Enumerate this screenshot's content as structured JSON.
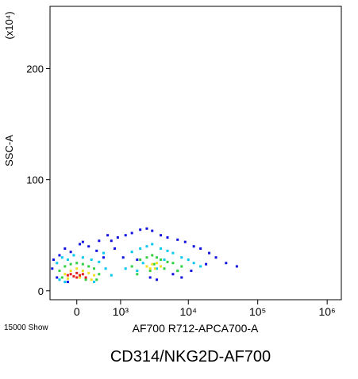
{
  "chart_data": {
    "type": "scatter",
    "title": "CD314/NKG2D-AF700",
    "x_label": "AF700 R712-APCA700-A",
    "y_label": "SSC-A",
    "y_unit_label": "(x10⁴)",
    "event_count_label": "15000 Show",
    "xscale": "arcsinh",
    "xlim": [
      -500,
      1600000
    ],
    "xticks": [
      0,
      {
        "value": 1000,
        "label": "10³"
      },
      {
        "value": 10000,
        "label": "10⁴"
      },
      {
        "value": 100000,
        "label": "10⁵"
      },
      {
        "value": 1000000,
        "label": "10⁶"
      }
    ],
    "ylim": [
      -8,
      256
    ],
    "yticks": [
      0,
      100,
      200
    ],
    "series": [
      {
        "color": "#1010e0",
        "x": [
          -450,
          -300,
          -200,
          -100,
          50,
          200,
          350,
          500,
          700,
          900,
          1200,
          1500,
          2000,
          2500,
          3000,
          4000,
          5000,
          7000,
          9000,
          12000,
          15000,
          20000,
          25000,
          35000,
          50000,
          -350,
          -150,
          100,
          400,
          800,
          1100,
          1800,
          2800,
          3500,
          6000,
          8000,
          11000,
          18000,
          -420,
          600
        ],
        "values": [
          20,
          32,
          38,
          35,
          42,
          40,
          36,
          30,
          45,
          48,
          50,
          52,
          55,
          56,
          54,
          50,
          48,
          46,
          44,
          40,
          38,
          34,
          30,
          25,
          22,
          12,
          8,
          44,
          45,
          38,
          30,
          28,
          12,
          10,
          15,
          12,
          18,
          24,
          28,
          50
        ]
      },
      {
        "color": "#00c8f0",
        "x": [
          -350,
          -250,
          -150,
          -50,
          100,
          250,
          400,
          550,
          1500,
          2000,
          2500,
          3000,
          4000,
          5000,
          6000,
          8000,
          10000,
          12000,
          1800,
          3500,
          -300,
          300,
          700,
          1200,
          2200,
          7000,
          15000,
          4500,
          -200,
          500
        ],
        "values": [
          25,
          30,
          28,
          32,
          30,
          28,
          26,
          20,
          35,
          38,
          40,
          42,
          38,
          36,
          34,
          30,
          28,
          25,
          18,
          20,
          10,
          8,
          14,
          20,
          25,
          18,
          22,
          28,
          8,
          34
        ]
      },
      {
        "color": "#30d040",
        "x": [
          -300,
          -200,
          -100,
          0,
          100,
          200,
          300,
          400,
          2000,
          2500,
          3000,
          3500,
          4000,
          5000,
          6000,
          8000,
          2800,
          4500,
          1500,
          -250,
          350,
          7000,
          1800,
          3200,
          150
        ],
        "values": [
          18,
          22,
          24,
          25,
          24,
          22,
          20,
          15,
          28,
          30,
          32,
          30,
          28,
          26,
          25,
          22,
          18,
          20,
          22,
          12,
          10,
          18,
          15,
          24,
          10
        ]
      },
      {
        "color": "#f0e020",
        "x": [
          -200,
          -100,
          0,
          100,
          200,
          300,
          -150,
          50,
          250,
          2500,
          3000,
          3500,
          4000,
          2800,
          3300
        ],
        "values": [
          15,
          18,
          20,
          18,
          16,
          14,
          11,
          12,
          10,
          22,
          24,
          25,
          22,
          20,
          20
        ]
      },
      {
        "color": "#e82020",
        "x": [
          -100,
          0,
          100,
          -50,
          50,
          0,
          150,
          -150
        ],
        "values": [
          15,
          16,
          15,
          13,
          14,
          12,
          12,
          14
        ]
      }
    ]
  }
}
